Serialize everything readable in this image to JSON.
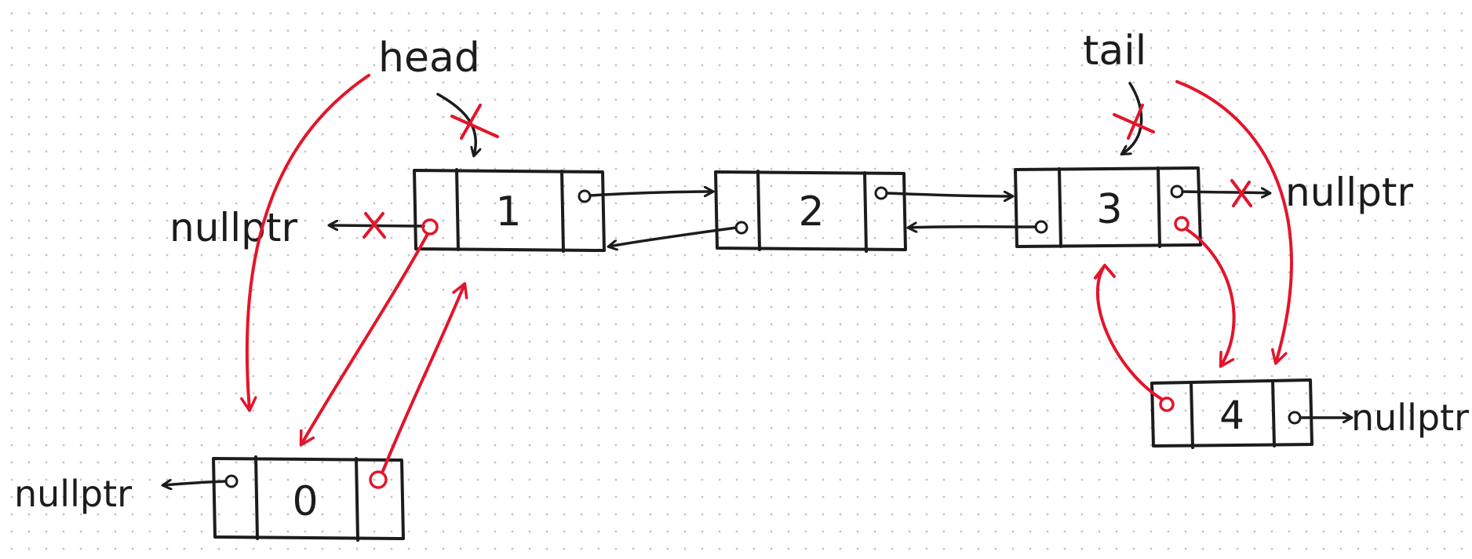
{
  "labels": {
    "head": "head",
    "tail": "tail",
    "null_left_top": "nullptr",
    "null_right_top": "nullptr",
    "null_bottom_left": "nullptr",
    "null_bottom_right": "nullptr"
  },
  "nodes": [
    {
      "id": "node-1",
      "value": "1"
    },
    {
      "id": "node-2",
      "value": "2"
    },
    {
      "id": "node-3",
      "value": "3"
    },
    {
      "id": "node-0",
      "value": "0"
    },
    {
      "id": "node-4",
      "value": "4"
    }
  ],
  "colors": {
    "ink": "#1c1c1c",
    "edit": "#e3152b",
    "dots": "#c4c4c4"
  }
}
